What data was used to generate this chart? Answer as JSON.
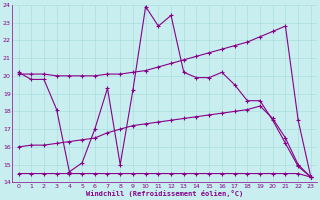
{
  "xlabel": "Windchill (Refroidissement éolien,°C)",
  "bg_color": "#c8eef0",
  "line_color": "#880088",
  "grid_color": "#aadddd",
  "xlim": [
    -0.5,
    23.5
  ],
  "ylim": [
    14,
    24
  ],
  "xticks": [
    0,
    1,
    2,
    3,
    4,
    5,
    6,
    7,
    8,
    9,
    10,
    11,
    12,
    13,
    14,
    15,
    16,
    17,
    18,
    19,
    20,
    21,
    22,
    23
  ],
  "yticks": [
    14,
    15,
    16,
    17,
    18,
    19,
    20,
    21,
    22,
    23,
    24
  ],
  "series": [
    {
      "x": [
        0,
        1,
        2,
        3,
        4,
        5,
        6,
        7,
        8,
        9,
        10,
        11,
        12,
        13,
        14,
        15,
        16,
        17,
        18,
        19,
        20,
        21,
        22,
        23
      ],
      "y": [
        20.2,
        19.8,
        19.8,
        18.1,
        14.6,
        15.1,
        17.0,
        19.3,
        15.0,
        19.2,
        23.9,
        22.8,
        23.4,
        20.2,
        19.9,
        19.9,
        20.2,
        19.5,
        18.6,
        18.6,
        17.5,
        16.2,
        14.9,
        14.3
      ]
    },
    {
      "x": [
        0,
        1,
        2,
        3,
        4,
        5,
        6,
        7,
        8,
        9,
        10,
        11,
        12,
        13,
        14,
        15,
        16,
        17,
        18,
        19,
        20,
        21,
        22,
        23
      ],
      "y": [
        20.1,
        20.1,
        20.1,
        20.0,
        20.0,
        20.0,
        20.0,
        20.1,
        20.1,
        20.2,
        20.3,
        20.5,
        20.7,
        20.9,
        21.1,
        21.3,
        21.5,
        21.7,
        21.9,
        22.2,
        22.5,
        22.8,
        17.5,
        14.3
      ]
    },
    {
      "x": [
        0,
        1,
        2,
        3,
        4,
        5,
        6,
        7,
        8,
        9,
        10,
        11,
        12,
        13,
        14,
        15,
        16,
        17,
        18,
        19,
        20,
        21,
        22,
        23
      ],
      "y": [
        16.0,
        16.1,
        16.1,
        16.2,
        16.3,
        16.4,
        16.5,
        16.8,
        17.0,
        17.2,
        17.3,
        17.4,
        17.5,
        17.6,
        17.7,
        17.8,
        17.9,
        18.0,
        18.1,
        18.3,
        17.6,
        16.5,
        15.0,
        14.3
      ]
    },
    {
      "x": [
        0,
        1,
        2,
        3,
        4,
        5,
        6,
        7,
        8,
        9,
        10,
        11,
        12,
        13,
        14,
        15,
        16,
        17,
        18,
        19,
        20,
        21,
        22,
        23
      ],
      "y": [
        14.5,
        14.5,
        14.5,
        14.5,
        14.5,
        14.5,
        14.5,
        14.5,
        14.5,
        14.5,
        14.5,
        14.5,
        14.5,
        14.5,
        14.5,
        14.5,
        14.5,
        14.5,
        14.5,
        14.5,
        14.5,
        14.5,
        14.5,
        14.3
      ]
    }
  ]
}
